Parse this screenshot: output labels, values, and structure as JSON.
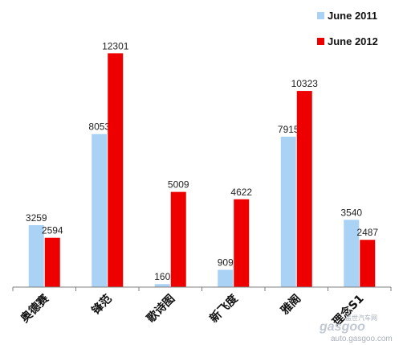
{
  "chart_data": {
    "type": "bar",
    "title": "",
    "xlabel": "",
    "ylabel": "",
    "categories": [
      "奥德赛",
      "锋范",
      "歌诗图",
      "新飞度",
      "雅阁",
      "理念S1"
    ],
    "series": [
      {
        "name": "June 2011",
        "color": "#a9d2f5",
        "values": [
          3259,
          8053,
          160,
          909,
          7915,
          3540
        ]
      },
      {
        "name": "June 2012",
        "color": "#ee0000",
        "values": [
          2594,
          12301,
          5009,
          4622,
          10323,
          2487
        ]
      }
    ],
    "ylim": [
      0,
      13500
    ],
    "grid": false,
    "legend_position": "top-right"
  },
  "watermark": {
    "line1": "盖世汽车网",
    "line2": "gasgoo",
    "line3": "auto.gasgoo.com"
  }
}
